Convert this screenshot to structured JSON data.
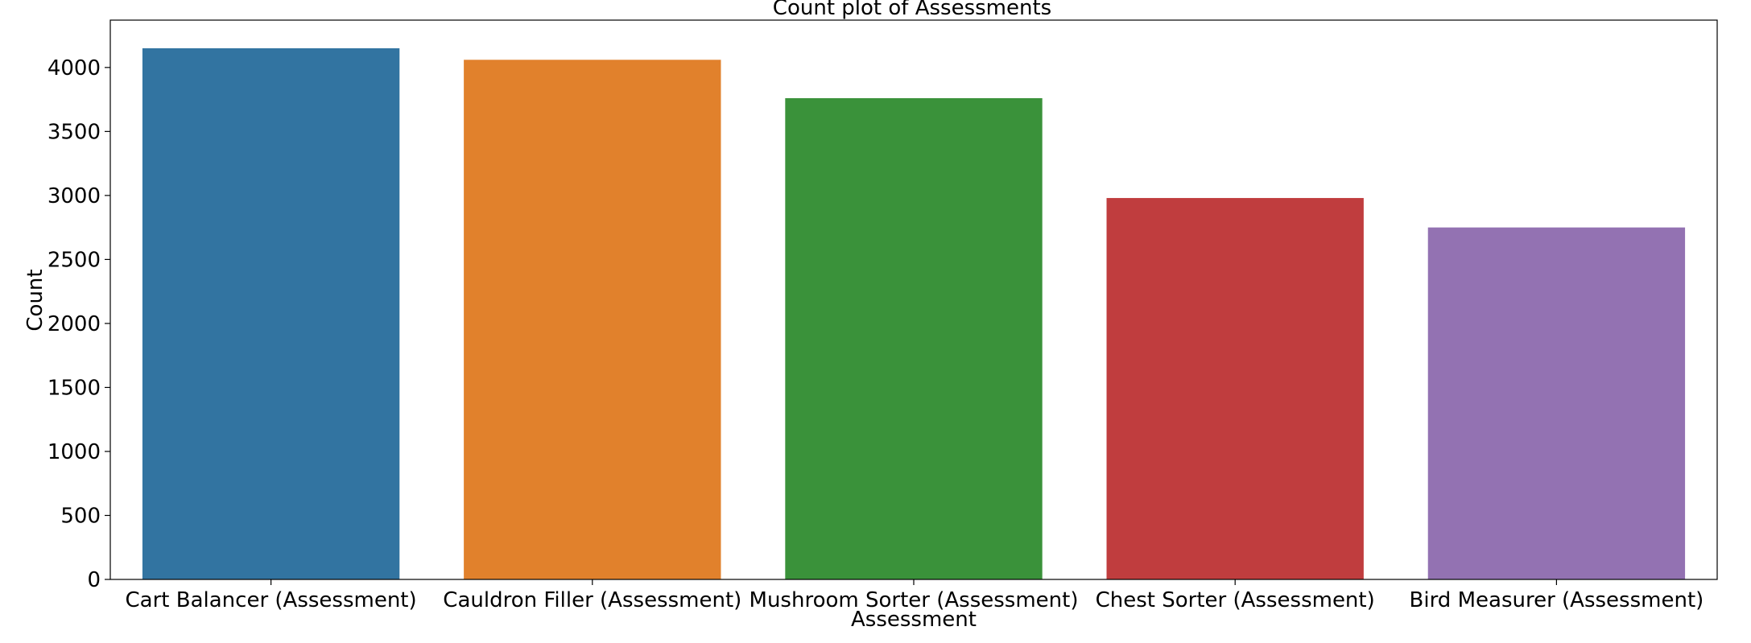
{
  "chart_data": {
    "type": "bar",
    "title": "Count plot of Assessments",
    "xlabel": "Assessment",
    "ylabel": "Count",
    "categories": [
      "Cart Balancer (Assessment)",
      "Cauldron Filler (Assessment)",
      "Mushroom Sorter (Assessment)",
      "Chest Sorter (Assessment)",
      "Bird Measurer (Assessment)"
    ],
    "values": [
      4150,
      4060,
      3760,
      2980,
      2750
    ],
    "colors": [
      "#3274a1",
      "#e1812c",
      "#3a923a",
      "#c03d3e",
      "#9372b2"
    ],
    "ylim": [
      0,
      4370
    ],
    "yticks": [
      0,
      500,
      1000,
      1500,
      2000,
      2500,
      3000,
      3500,
      4000
    ],
    "grid": false,
    "legend": "none"
  }
}
